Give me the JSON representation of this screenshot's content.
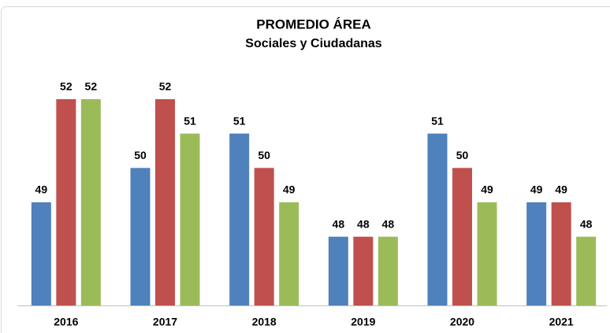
{
  "chart_data": {
    "type": "bar",
    "title": "PROMEDIO ÁREA",
    "subtitle": "Sociales y Ciudadanas",
    "categories": [
      "2016",
      "2017",
      "2018",
      "2019",
      "2020",
      "2021"
    ],
    "series": [
      {
        "color": "#4f81bd",
        "values": [
          49,
          50,
          51,
          48,
          51,
          49
        ]
      },
      {
        "color": "#c0504d",
        "values": [
          52,
          52,
          50,
          48,
          50,
          49
        ]
      },
      {
        "color": "#9bbb59",
        "values": [
          52,
          51,
          49,
          48,
          49,
          48
        ]
      }
    ],
    "ylim": [
      46,
      52
    ]
  }
}
